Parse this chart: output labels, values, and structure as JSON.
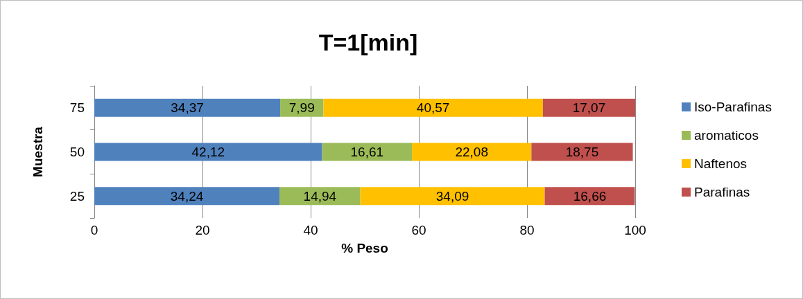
{
  "chart_data": {
    "type": "bar",
    "orientation": "horizontal",
    "stacked": true,
    "title": "T=1[min]",
    "xlabel": "% Peso",
    "ylabel": "Muestra",
    "categories": [
      "75",
      "50",
      "25"
    ],
    "series": [
      {
        "name": "Iso-Parafinas",
        "color": "#4f81bd",
        "values": [
          34.37,
          42.12,
          34.24
        ],
        "value_labels": [
          "34,37",
          "42,12",
          "34,24"
        ]
      },
      {
        "name": "aromaticos",
        "color": "#9bbb59",
        "values": [
          7.99,
          16.61,
          14.94
        ],
        "value_labels": [
          "7,99",
          "16,61",
          "14,94"
        ]
      },
      {
        "name": "Naftenos",
        "color": "#ffc000",
        "values": [
          40.57,
          22.08,
          34.09
        ],
        "value_labels": [
          "40,57",
          "22,08",
          "34,09"
        ]
      },
      {
        "name": "Parafinas",
        "color": "#c0504d",
        "values": [
          17.07,
          18.75,
          16.66
        ],
        "value_labels": [
          "17,07",
          "18,75",
          "16,66"
        ]
      }
    ],
    "xlim": [
      0,
      100
    ],
    "xticks": [
      0,
      20,
      40,
      60,
      80,
      100
    ],
    "grid": "x",
    "legend": "right"
  }
}
